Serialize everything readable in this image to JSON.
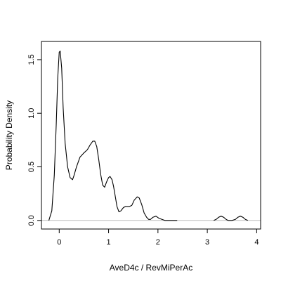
{
  "chart_data": {
    "type": "line",
    "title": "",
    "xlabel": "AveD4c / RevMiPerAc",
    "ylabel": "Probability Density",
    "xlim": [
      -0.36,
      4.08
    ],
    "ylim": [
      -0.08,
      1.67
    ],
    "x_ticks": [
      0,
      1,
      2,
      3,
      4
    ],
    "x_tick_labels": [
      "0",
      "1",
      "2",
      "3",
      "4"
    ],
    "y_ticks": [
      0,
      0.5,
      1.0,
      1.5
    ],
    "y_tick_labels": [
      "0.0",
      "0.5",
      "1.0",
      "1.5"
    ],
    "grid": false,
    "baseline": {
      "y": 0,
      "color": "#bebebe"
    },
    "series": [
      {
        "color": "#000000",
        "x": [
          -0.21,
          -0.15,
          -0.1,
          -0.06,
          -0.03,
          0.0,
          0.02,
          0.05,
          0.08,
          0.12,
          0.17,
          0.22,
          0.27,
          0.3,
          0.35,
          0.42,
          0.5,
          0.57,
          0.62,
          0.68,
          0.72,
          0.76,
          0.8,
          0.84,
          0.88,
          0.92,
          0.96,
          1.0,
          1.03,
          1.07,
          1.1,
          1.13,
          1.17,
          1.21,
          1.25,
          1.3,
          1.34,
          1.38,
          1.42,
          1.47,
          1.52,
          1.58,
          1.62,
          1.67,
          1.72,
          1.77,
          1.81,
          1.85,
          1.9,
          1.96,
          2.02,
          2.08,
          2.14,
          2.2,
          2.25,
          2.3,
          2.35,
          2.39
        ],
        "y": [
          0.0,
          0.09,
          0.42,
          0.9,
          1.33,
          1.57,
          1.58,
          1.42,
          1.05,
          0.72,
          0.5,
          0.4,
          0.38,
          0.42,
          0.5,
          0.59,
          0.63,
          0.66,
          0.7,
          0.74,
          0.74,
          0.69,
          0.57,
          0.43,
          0.33,
          0.31,
          0.36,
          0.4,
          0.41,
          0.38,
          0.32,
          0.24,
          0.13,
          0.08,
          0.09,
          0.12,
          0.13,
          0.13,
          0.13,
          0.14,
          0.19,
          0.22,
          0.21,
          0.15,
          0.07,
          0.03,
          0.01,
          0.01,
          0.03,
          0.04,
          0.02,
          0.01,
          0.0,
          0.0,
          0.0,
          0.0,
          0.0,
          0.0
        ]
      },
      {
        "color": "#000000",
        "x": [
          3.13,
          3.18,
          3.23,
          3.28,
          3.33,
          3.38,
          3.42,
          3.5,
          3.57,
          3.62,
          3.67,
          3.72,
          3.77,
          3.82
        ],
        "y": [
          0.0,
          0.01,
          0.03,
          0.04,
          0.03,
          0.01,
          0.0,
          0.0,
          0.01,
          0.03,
          0.04,
          0.03,
          0.01,
          0.0
        ]
      }
    ]
  }
}
